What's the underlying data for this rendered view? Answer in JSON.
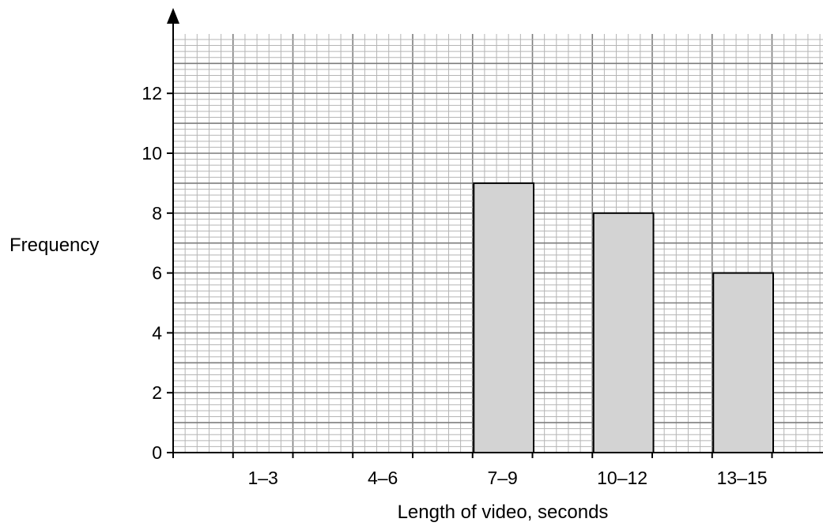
{
  "chart_data": {
    "type": "bar",
    "title": "",
    "xlabel": "Length of video, seconds",
    "ylabel": "Frequency",
    "categories": [
      "1–3",
      "4–6",
      "7–9",
      "10–12",
      "13–15"
    ],
    "values": [
      null,
      null,
      9,
      8,
      6
    ],
    "ylim": [
      0,
      14
    ],
    "yticks": [
      0,
      2,
      4,
      6,
      8,
      10,
      12
    ],
    "grid": true,
    "bar_color": "#d3d3d3",
    "bar_edge_color": "#000000",
    "grid_color": "#b5b5b5"
  }
}
